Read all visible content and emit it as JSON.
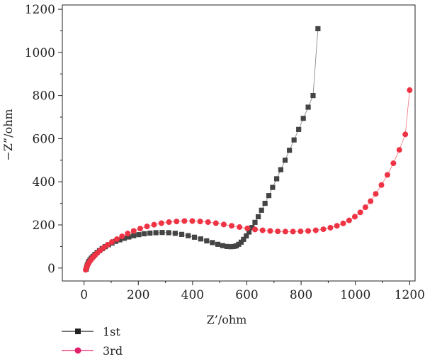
{
  "chart_data": {
    "type": "scatter",
    "xlabel": "Z’/ohm",
    "ylabel": "−Z”/ohm",
    "xlim": [
      -80,
      1220
    ],
    "ylim": [
      -60,
      1220
    ],
    "x_ticks": [
      0,
      200,
      400,
      600,
      800,
      1000,
      1200
    ],
    "y_ticks": [
      0,
      200,
      400,
      600,
      800,
      1000,
      1200
    ],
    "grid": false,
    "legend_placement": "bottom-left",
    "series": [
      {
        "name": "1st",
        "color": "#444444",
        "marker": "square",
        "x": [
          8,
          10,
          12,
          15,
          18,
          22,
          27,
          33,
          40,
          48,
          57,
          67,
          78,
          90,
          103,
          117,
          132,
          148,
          165,
          183,
          202,
          222,
          243,
          265,
          288,
          312,
          336,
          360,
          384,
          407,
          430,
          452,
          473,
          493,
          511,
          527,
          541,
          552,
          561,
          570,
          579,
          588,
          598,
          608,
          619,
          630,
          642,
          654,
          667,
          681,
          695,
          710,
          725,
          741,
          757,
          774,
          791,
          808,
          826,
          844,
          862
        ],
        "y": [
          -5,
          5,
          14,
          22,
          30,
          38,
          46,
          54,
          63,
          72,
          81,
          90,
          99,
          108,
          116,
          124,
          131,
          138,
          144,
          150,
          155,
          159,
          162,
          164,
          165,
          164,
          161,
          156,
          150,
          143,
          135,
          126,
          118,
          110,
          104,
          100,
          99,
          100,
          103,
          110,
          120,
          133,
          149,
          167,
          188,
          212,
          238,
          268,
          300,
          336,
          374,
          414,
          456,
          500,
          546,
          594,
          643,
          694,
          746,
          800,
          1110
        ]
      },
      {
        "name": "3rd",
        "color": "#ee3344",
        "marker": "circle",
        "x": [
          6,
          9,
          13,
          18,
          24,
          31,
          39,
          49,
          60,
          73,
          87,
          103,
          121,
          140,
          161,
          183,
          207,
          232,
          258,
          285,
          313,
          341,
          370,
          399,
          428,
          457,
          486,
          515,
          544,
          573,
          602,
          630,
          658,
          686,
          714,
          742,
          770,
          798,
          826,
          854,
          882,
          908,
          932,
          955,
          977,
          998,
          1018,
          1037,
          1056,
          1075,
          1096,
          1118,
          1140,
          1162,
          1184,
          1200
        ],
        "y": [
          -8,
          3,
          14,
          25,
          36,
          47,
          58,
          70,
          82,
          95,
          108,
          121,
          134,
          147,
          160,
          172,
          183,
          193,
          201,
          208,
          213,
          216,
          218,
          218,
          216,
          213,
          208,
          202,
          196,
          190,
          184,
          179,
          175,
          172,
          170,
          169,
          169,
          170,
          172,
          175,
          180,
          187,
          196,
          207,
          221,
          238,
          258,
          282,
          310,
          344,
          385,
          432,
          486,
          548,
          620,
          825
        ]
      }
    ]
  }
}
